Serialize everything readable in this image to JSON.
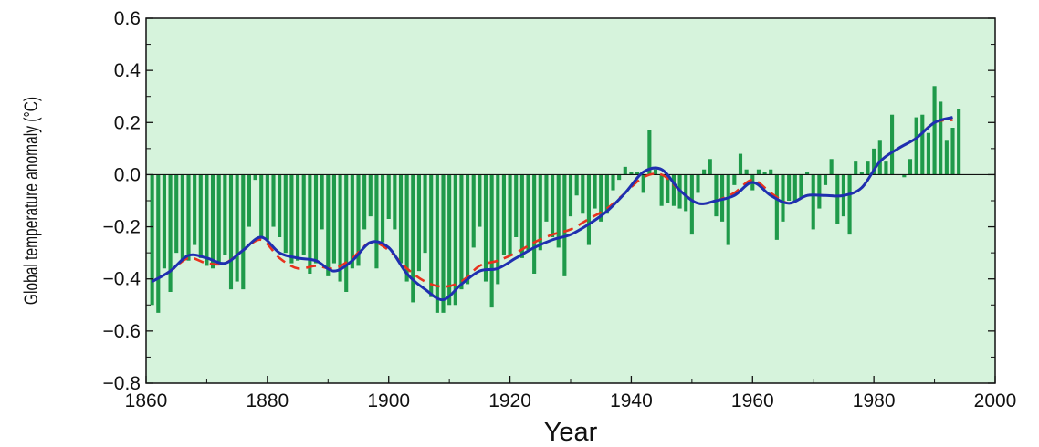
{
  "chart_data": {
    "type": "bar",
    "title": "",
    "xlabel": "Year",
    "ylabel": "Global temperature anomaly (°C)",
    "xlim": [
      1860,
      2000
    ],
    "ylim": [
      -0.8,
      0.6
    ],
    "xticks": [
      "1860",
      "1880",
      "1900",
      "1920",
      "1940",
      "1960",
      "1980",
      "2000"
    ],
    "yticks": [
      "0.6",
      "0.4",
      "0.2",
      "0.0",
      "−0.2",
      "−0.4",
      "−0.6",
      "−0.8"
    ],
    "grid": false,
    "colors": {
      "plot_background": "#d6f3dc",
      "bars": "#1f9a4a",
      "smooth_line": "#1f2fb0",
      "dashed_line": "#e8321e"
    },
    "series": [
      {
        "kind": "bars",
        "x": [
          1861,
          1862,
          1863,
          1864,
          1865,
          1866,
          1867,
          1868,
          1869,
          1870,
          1871,
          1872,
          1873,
          1874,
          1875,
          1876,
          1877,
          1878,
          1879,
          1880,
          1881,
          1882,
          1883,
          1884,
          1885,
          1886,
          1887,
          1888,
          1889,
          1890,
          1891,
          1892,
          1893,
          1894,
          1895,
          1896,
          1897,
          1898,
          1899,
          1900,
          1901,
          1902,
          1903,
          1904,
          1905,
          1906,
          1907,
          1908,
          1909,
          1910,
          1911,
          1912,
          1913,
          1914,
          1915,
          1916,
          1917,
          1918,
          1919,
          1920,
          1921,
          1922,
          1923,
          1924,
          1925,
          1926,
          1927,
          1928,
          1929,
          1930,
          1931,
          1932,
          1933,
          1934,
          1935,
          1936,
          1937,
          1938,
          1939,
          1940,
          1941,
          1942,
          1943,
          1944,
          1945,
          1946,
          1947,
          1948,
          1949,
          1950,
          1951,
          1952,
          1953,
          1954,
          1955,
          1956,
          1957,
          1958,
          1959,
          1960,
          1961,
          1962,
          1963,
          1964,
          1965,
          1966,
          1967,
          1968,
          1969,
          1970,
          1971,
          1972,
          1973,
          1974,
          1975,
          1976,
          1977,
          1978,
          1979,
          1980,
          1981,
          1982,
          1983,
          1984,
          1985,
          1986,
          1987,
          1988,
          1989,
          1990,
          1991,
          1992,
          1993,
          1994
        ],
        "values": [
          -0.5,
          -0.53,
          -0.36,
          -0.45,
          -0.3,
          -0.33,
          -0.33,
          -0.27,
          -0.32,
          -0.35,
          -0.36,
          -0.34,
          -0.31,
          -0.44,
          -0.41,
          -0.44,
          -0.2,
          -0.02,
          -0.24,
          -0.25,
          -0.2,
          -0.24,
          -0.3,
          -0.34,
          -0.33,
          -0.31,
          -0.38,
          -0.34,
          -0.21,
          -0.39,
          -0.34,
          -0.41,
          -0.45,
          -0.36,
          -0.35,
          -0.21,
          -0.16,
          -0.36,
          -0.26,
          -0.17,
          -0.21,
          -0.34,
          -0.41,
          -0.49,
          -0.37,
          -0.3,
          -0.47,
          -0.53,
          -0.53,
          -0.5,
          -0.5,
          -0.44,
          -0.42,
          -0.28,
          -0.2,
          -0.41,
          -0.51,
          -0.42,
          -0.31,
          -0.31,
          -0.24,
          -0.32,
          -0.29,
          -0.38,
          -0.29,
          -0.18,
          -0.24,
          -0.28,
          -0.39,
          -0.16,
          -0.08,
          -0.15,
          -0.27,
          -0.13,
          -0.18,
          -0.15,
          -0.06,
          -0.02,
          0.03,
          0.01,
          0.01,
          -0.07,
          0.17,
          0.02,
          -0.12,
          -0.11,
          -0.12,
          -0.13,
          -0.14,
          -0.23,
          -0.07,
          0.02,
          0.06,
          -0.16,
          -0.18,
          -0.27,
          -0.04,
          0.08,
          0.02,
          -0.06,
          0.02,
          0.01,
          0.02,
          -0.25,
          -0.18,
          -0.1,
          -0.1,
          -0.09,
          0.01,
          -0.21,
          -0.13,
          -0.04,
          0.06,
          -0.19,
          -0.16,
          -0.23,
          0.05,
          0.01,
          0.05,
          0.1,
          0.13,
          0.05,
          0.23,
          0.0,
          -0.01,
          0.06,
          0.22,
          0.23,
          0.16,
          0.34,
          0.28,
          0.13,
          0.18,
          0.25
        ]
      },
      {
        "kind": "smooth-solid",
        "x": [
          1861,
          1864,
          1867,
          1870,
          1873,
          1876,
          1879,
          1882,
          1885,
          1888,
          1891,
          1894,
          1897,
          1900,
          1903,
          1906,
          1909,
          1912,
          1915,
          1918,
          1921,
          1924,
          1927,
          1930,
          1933,
          1936,
          1939,
          1942,
          1945,
          1948,
          1951,
          1954,
          1957,
          1960,
          1963,
          1966,
          1969,
          1972,
          1975,
          1978,
          1981,
          1984,
          1987,
          1990,
          1993
        ],
        "values": [
          -0.41,
          -0.37,
          -0.31,
          -0.32,
          -0.34,
          -0.29,
          -0.24,
          -0.3,
          -0.32,
          -0.33,
          -0.37,
          -0.33,
          -0.26,
          -0.28,
          -0.38,
          -0.44,
          -0.48,
          -0.42,
          -0.37,
          -0.36,
          -0.32,
          -0.28,
          -0.25,
          -0.23,
          -0.19,
          -0.14,
          -0.07,
          0.01,
          0.02,
          -0.06,
          -0.11,
          -0.1,
          -0.08,
          -0.03,
          -0.08,
          -0.11,
          -0.08,
          -0.08,
          -0.08,
          -0.05,
          0.05,
          0.1,
          0.14,
          0.2,
          0.22
        ]
      },
      {
        "kind": "smooth-dashed",
        "x": [
          1861,
          1864,
          1867,
          1870,
          1873,
          1876,
          1879,
          1882,
          1885,
          1888,
          1891,
          1894,
          1897,
          1900,
          1903,
          1906,
          1909,
          1912,
          1915,
          1918,
          1921,
          1924,
          1927,
          1930,
          1933,
          1936,
          1939,
          1942,
          1945,
          1948,
          1951,
          1954,
          1957,
          1960,
          1963,
          1966,
          1969,
          1972,
          1975,
          1978,
          1981,
          1984,
          1987,
          1990,
          1993
        ],
        "values": [
          -0.41,
          -0.37,
          -0.32,
          -0.34,
          -0.34,
          -0.29,
          -0.25,
          -0.32,
          -0.36,
          -0.35,
          -0.36,
          -0.32,
          -0.26,
          -0.29,
          -0.36,
          -0.41,
          -0.43,
          -0.41,
          -0.35,
          -0.33,
          -0.3,
          -0.26,
          -0.23,
          -0.21,
          -0.17,
          -0.13,
          -0.07,
          -0.01,
          0.0,
          -0.06,
          -0.11,
          -0.1,
          -0.07,
          -0.02,
          -0.07,
          -0.11,
          -0.08,
          -0.08,
          -0.08,
          -0.05,
          0.05,
          0.1,
          0.14,
          0.2,
          0.21
        ]
      }
    ]
  }
}
